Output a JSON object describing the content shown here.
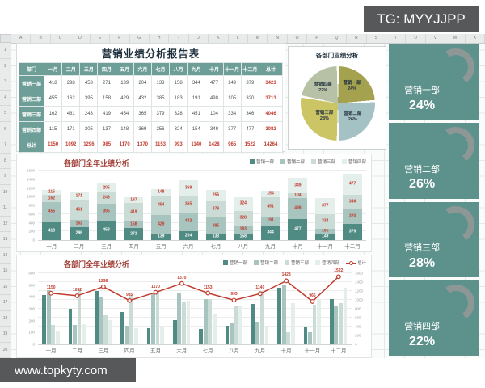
{
  "overlays": {
    "tg_label": "TG: MYYJJPP",
    "site_label": "www.topkyty.com"
  },
  "sheet": {
    "column_letters": [
      "A",
      "B",
      "C",
      "D",
      "E",
      "F",
      "G",
      "H",
      "I",
      "J",
      "K",
      "L",
      "M",
      "N",
      "O",
      "P",
      "Q",
      "R",
      "S",
      "T",
      "U",
      "V",
      "W",
      "X"
    ],
    "row_numbers": [
      "1",
      "2",
      "3",
      "4",
      "5",
      "6",
      "7",
      "8",
      "9",
      "10",
      "11",
      "12",
      "13",
      "14",
      "15",
      "16",
      "17",
      "18",
      "19",
      "20"
    ]
  },
  "colors": {
    "series": [
      "#4f8a83",
      "#a7c4bf",
      "#cbdcd7",
      "#e4eeeb"
    ],
    "accent_red": "#c13b2e",
    "table_teal": "#6d9e97",
    "sidebar_teal": "#5d928c",
    "gauge_arc_gray": "#8d9795",
    "pie": [
      "#a4a24f",
      "#a4c1c4",
      "#cbc565",
      "#b6c1a6"
    ],
    "title_navy": "#1e2f3c",
    "chart_title_maroon": "#9e3a31"
  },
  "report_table": {
    "title": "营销业绩分析报告表",
    "columns": [
      "部门",
      "一月",
      "二月",
      "三月",
      "四月",
      "五月",
      "六月",
      "七月",
      "八月",
      "九月",
      "十月",
      "十一月",
      "十二月",
      "总计"
    ],
    "rows": [
      {
        "name": "营销一部",
        "is_total": false,
        "values": [
          "418",
          "298",
          "453",
          "271",
          "139",
          "204",
          "133",
          "158",
          "344",
          "477",
          "149",
          "379",
          "3423"
        ]
      },
      {
        "name": "营销二部",
        "is_total": false,
        "values": [
          "455",
          "162",
          "395",
          "158",
          "429",
          "432",
          "385",
          "183",
          "191",
          "498",
          "105",
          "320",
          "3713"
        ]
      },
      {
        "name": "营销三部",
        "is_total": false,
        "values": [
          "162",
          "461",
          "243",
          "419",
          "454",
          "365",
          "379",
          "328",
          "451",
          "104",
          "334",
          "346",
          "4046"
        ]
      },
      {
        "name": "营销四部",
        "is_total": false,
        "values": [
          "115",
          "171",
          "205",
          "137",
          "148",
          "369",
          "256",
          "324",
          "154",
          "349",
          "377",
          "477",
          "3082"
        ]
      },
      {
        "name": "总计",
        "is_total": true,
        "values": [
          "1150",
          "1092",
          "1296",
          "985",
          "1170",
          "1370",
          "1153",
          "993",
          "1140",
          "1428",
          "965",
          "1522",
          "14264"
        ]
      }
    ]
  },
  "pie": {
    "title": "各部门业绩分析",
    "slices": [
      {
        "label": "营销一部",
        "pct": 24
      },
      {
        "label": "营销二部",
        "pct": 26
      },
      {
        "label": "营销三部",
        "pct": 28
      },
      {
        "label": "营销四部",
        "pct": 22
      }
    ]
  },
  "gauges": [
    {
      "label": "营销一部",
      "value": "24%"
    },
    {
      "label": "营销二部",
      "value": "26%"
    },
    {
      "label": "营销三部",
      "value": "28%"
    },
    {
      "label": "营销四部",
      "value": "22%"
    }
  ],
  "chart_data": [
    {
      "type": "pie",
      "title": "各部门业绩分析",
      "labels": [
        "营销一部",
        "营销二部",
        "营销三部",
        "营销四部"
      ],
      "values": [
        24,
        26,
        28,
        22
      ]
    },
    {
      "type": "bar",
      "subtype": "stacked",
      "title": "各部门全年业绩分析",
      "categories": [
        "一月",
        "二月",
        "三月",
        "四月",
        "五月",
        "六月",
        "七月",
        "八月",
        "九月",
        "十月",
        "十一月",
        "十二月"
      ],
      "series": [
        {
          "name": "营销一部",
          "values": [
            418,
            298,
            453,
            271,
            139,
            204,
            133,
            158,
            344,
            477,
            149,
            379
          ]
        },
        {
          "name": "营销二部",
          "values": [
            455,
            162,
            395,
            158,
            429,
            432,
            385,
            183,
            191,
            498,
            105,
            320
          ]
        },
        {
          "name": "营销三部",
          "values": [
            162,
            461,
            243,
            419,
            454,
            365,
            379,
            328,
            451,
            104,
            334,
            346
          ]
        },
        {
          "name": "营销四部",
          "values": [
            115,
            171,
            205,
            137,
            148,
            369,
            256,
            324,
            154,
            349,
            377,
            477
          ]
        }
      ],
      "ylim": [
        0,
        1600
      ],
      "yticks": [
        "0",
        "200",
        "400",
        "600",
        "800",
        "1000",
        "1200",
        "1400",
        "1600"
      ],
      "grid": true,
      "legend_position": "top-right"
    },
    {
      "type": "bar+line",
      "title": "各部门全年业绩分析",
      "categories": [
        "一月",
        "二月",
        "三月",
        "四月",
        "五月",
        "六月",
        "七月",
        "八月",
        "九月",
        "十月",
        "十一月",
        "十二月"
      ],
      "series": [
        {
          "name": "营销一部",
          "values": [
            418,
            298,
            453,
            271,
            139,
            204,
            133,
            158,
            344,
            477,
            149,
            379
          ]
        },
        {
          "name": "营销二部",
          "values": [
            455,
            162,
            395,
            158,
            429,
            432,
            385,
            183,
            191,
            498,
            105,
            320
          ]
        },
        {
          "name": "营销三部",
          "values": [
            162,
            461,
            243,
            419,
            454,
            365,
            379,
            328,
            451,
            104,
            334,
            346
          ]
        },
        {
          "name": "营销四部",
          "values": [
            115,
            171,
            205,
            137,
            148,
            369,
            256,
            324,
            154,
            349,
            377,
            477
          ]
        }
      ],
      "line": {
        "name": "总计",
        "values": [
          1150,
          1092,
          1296,
          985,
          1170,
          1370,
          1153,
          993,
          1140,
          1428,
          965,
          1522
        ]
      },
      "ylim_left": [
        0,
        600
      ],
      "yticks_left": [
        "0",
        "100",
        "200",
        "300",
        "400",
        "500",
        "600"
      ],
      "ylim_right": [
        0,
        1600
      ],
      "yticks_right": [
        "0",
        "200",
        "400",
        "600",
        "800",
        "1000",
        "1200",
        "1400",
        "1600"
      ],
      "grid": true,
      "legend_position": "top-right"
    }
  ]
}
